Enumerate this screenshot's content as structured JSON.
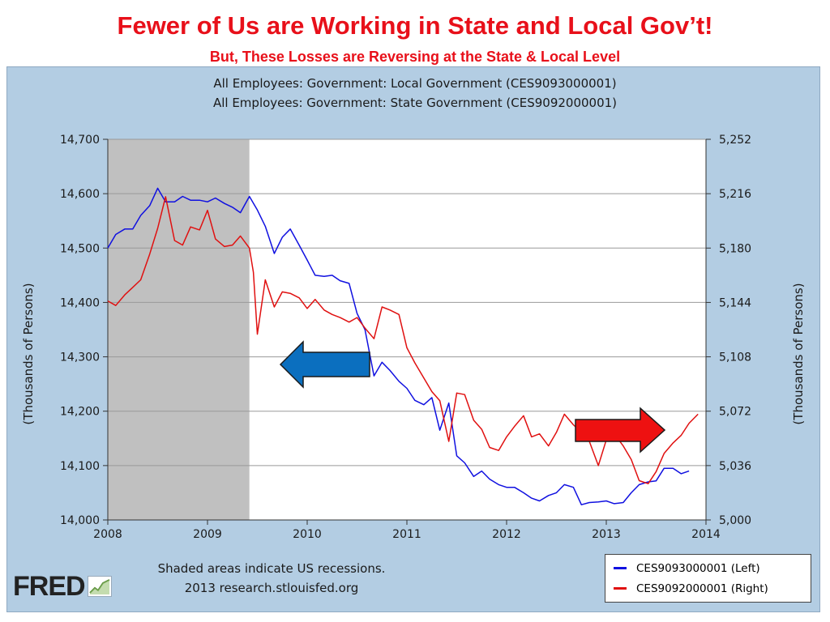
{
  "slide": {
    "title": "Fewer of Us are Working in State and Local Gov’t!",
    "subtitle": "But, These Losses are Reversing at the State & Local Level",
    "title_color": "#e8101a"
  },
  "footer": {
    "recession_note": "Shaded areas indicate US recessions.",
    "source": "2013 research.stlouisfed.org",
    "logo_text": "FRED"
  },
  "chart_data": {
    "type": "line",
    "title_lines": [
      "All Employees: Government: Local Government (CES9093000001)",
      "All Employees: Government: State Government (CES9092000001)"
    ],
    "xlabel": "",
    "ylabel_left": "(Thousands of Persons)",
    "ylabel_right": "(Thousands of Persons)",
    "x_ticks": [
      "2008",
      "2009",
      "2010",
      "2011",
      "2012",
      "2013",
      "2014"
    ],
    "xlim": [
      2008,
      2014
    ],
    "y_left": {
      "lim": [
        14000,
        14700
      ],
      "ticks": [
        14000,
        14100,
        14200,
        14300,
        14400,
        14500,
        14600,
        14700
      ],
      "tick_labels": [
        "14,000",
        "14,100",
        "14,200",
        "14,300",
        "14,400",
        "14,500",
        "14,600",
        "14,700"
      ]
    },
    "y_right": {
      "lim": [
        5000,
        5252
      ],
      "ticks": [
        5000,
        5036,
        5072,
        5108,
        5144,
        5180,
        5216,
        5252
      ],
      "tick_labels": [
        "5,000",
        "5,036",
        "5,072",
        "5,108",
        "5,144",
        "5,180",
        "5,216",
        "5,252"
      ]
    },
    "grid": true,
    "recession": {
      "start": 2008.0,
      "end": 2009.42,
      "color": "#c0c0c0"
    },
    "series": [
      {
        "name": "CES9093000001 (Left)",
        "axis": "left",
        "color": "#1010e0",
        "x": [
          2008.0,
          2008.08,
          2008.17,
          2008.25,
          2008.33,
          2008.42,
          2008.5,
          2008.58,
          2008.67,
          2008.75,
          2008.83,
          2008.92,
          2009.0,
          2009.08,
          2009.17,
          2009.25,
          2009.33,
          2009.42,
          2009.5,
          2009.58,
          2009.67,
          2009.75,
          2009.83,
          2009.92,
          2010.0,
          2010.08,
          2010.17,
          2010.25,
          2010.33,
          2010.42,
          2010.5,
          2010.58,
          2010.67,
          2010.75,
          2010.83,
          2010.92,
          2011.0,
          2011.08,
          2011.17,
          2011.25,
          2011.33,
          2011.42,
          2011.5,
          2011.58,
          2011.67,
          2011.75,
          2011.83,
          2011.92,
          2012.0,
          2012.08,
          2012.17,
          2012.25,
          2012.33,
          2012.42,
          2012.5,
          2012.58,
          2012.67,
          2012.75,
          2012.83,
          2012.92,
          2013.0,
          2013.08,
          2013.17,
          2013.25,
          2013.33,
          2013.42,
          2013.5,
          2013.58,
          2013.67,
          2013.75,
          2013.83
        ],
        "values": [
          14500,
          14525,
          14535,
          14535,
          14560,
          14578,
          14610,
          14585,
          14585,
          14595,
          14588,
          14588,
          14585,
          14592,
          14582,
          14575,
          14565,
          14595,
          14570,
          14540,
          14490,
          14520,
          14535,
          14505,
          14478,
          14450,
          14448,
          14450,
          14440,
          14435,
          14380,
          14350,
          14265,
          14290,
          14275,
          14255,
          14242,
          14220,
          14212,
          14225,
          14165,
          14215,
          14118,
          14105,
          14080,
          14090,
          14075,
          14065,
          14060,
          14060,
          14050,
          14040,
          14035,
          14045,
          14050,
          14065,
          14060,
          14028,
          14032,
          14033,
          14035,
          14030,
          14032,
          14050,
          14065,
          14070,
          14072,
          14095,
          14095,
          14085,
          14090
        ]
      },
      {
        "name": "CES9092000001 (Right)",
        "axis": "right",
        "color": "#e01010",
        "x": [
          2008.0,
          2008.08,
          2008.17,
          2008.25,
          2008.33,
          2008.42,
          2008.5,
          2008.58,
          2008.67,
          2008.75,
          2008.83,
          2008.92,
          2009.0,
          2009.08,
          2009.17,
          2009.25,
          2009.33,
          2009.42,
          2009.46,
          2009.5,
          2009.58,
          2009.67,
          2009.75,
          2009.83,
          2009.92,
          2010.0,
          2010.08,
          2010.17,
          2010.25,
          2010.33,
          2010.42,
          2010.5,
          2010.58,
          2010.67,
          2010.75,
          2010.83,
          2010.92,
          2011.0,
          2011.08,
          2011.17,
          2011.25,
          2011.33,
          2011.42,
          2011.5,
          2011.58,
          2011.67,
          2011.75,
          2011.83,
          2011.92,
          2012.0,
          2012.08,
          2012.17,
          2012.25,
          2012.33,
          2012.42,
          2012.5,
          2012.58,
          2012.67,
          2012.75,
          2012.83,
          2012.92,
          2013.0,
          2013.08,
          2013.17,
          2013.25,
          2013.33,
          2013.42,
          2013.5,
          2013.58,
          2013.67,
          2013.75,
          2013.83,
          2013.92
        ],
        "values": [
          5145,
          5142,
          5149,
          5154,
          5159,
          5176,
          5193,
          5214,
          5185,
          5182,
          5194,
          5192,
          5205,
          5186,
          5181,
          5182,
          5188,
          5180,
          5164,
          5123,
          5159,
          5141,
          5151,
          5150,
          5147,
          5140,
          5146,
          5139,
          5136,
          5134,
          5131,
          5134,
          5127,
          5120,
          5141,
          5139,
          5136,
          5114,
          5104,
          5094,
          5085,
          5079,
          5052,
          5084,
          5083,
          5066,
          5060,
          5048,
          5046,
          5055,
          5062,
          5069,
          5055,
          5057,
          5049,
          5058,
          5070,
          5063,
          5058,
          5052,
          5036,
          5053,
          5057,
          5049,
          5040,
          5026,
          5024,
          5032,
          5044,
          5051,
          5056,
          5064,
          5070
        ]
      }
    ],
    "annotations": [
      {
        "type": "arrow",
        "direction": "left",
        "color": "#0b6fbf"
      },
      {
        "type": "arrow",
        "direction": "right",
        "color": "#ee1111"
      }
    ]
  }
}
